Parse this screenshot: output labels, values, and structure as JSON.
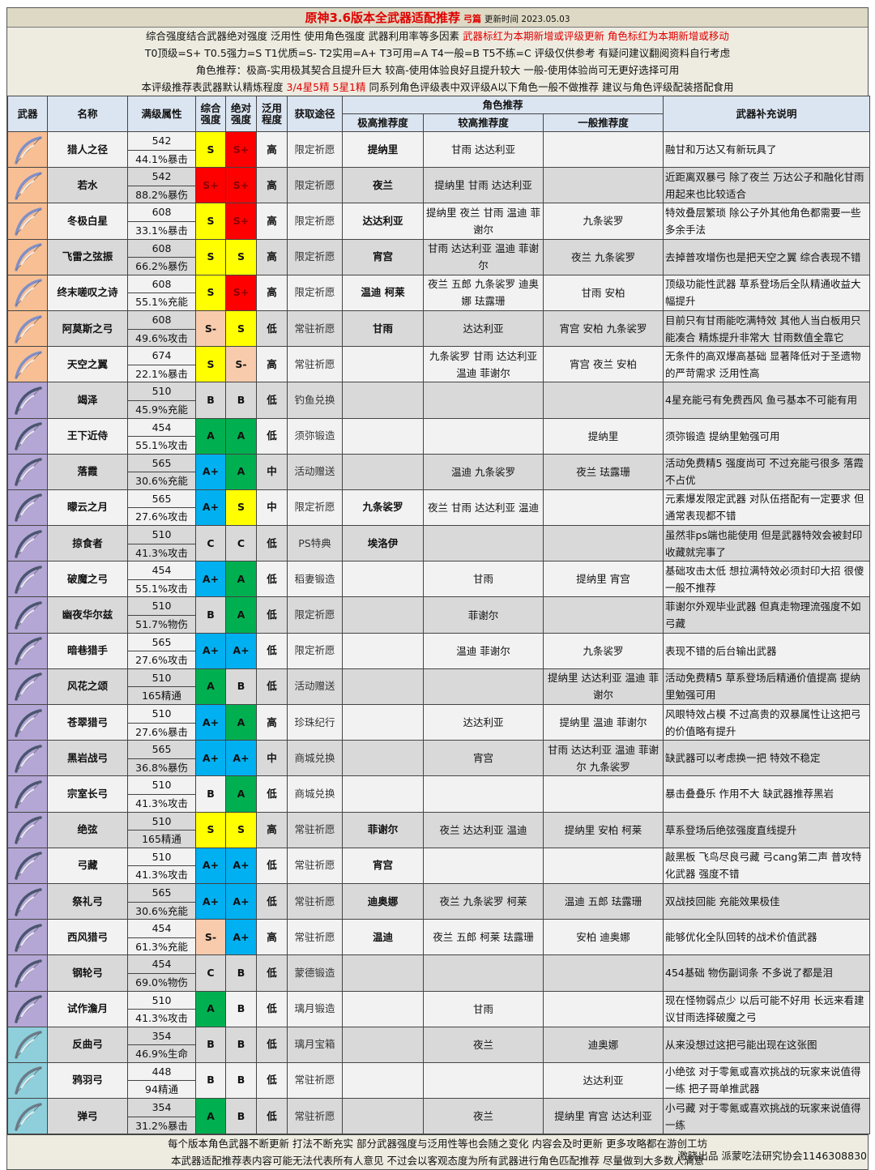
{
  "title": {
    "main": "原神3.6版本全武器适配推荐",
    "sub": "弓篇",
    "updated": "更新时间 2023.05.03"
  },
  "info": {
    "line1": "综合强度结合武器绝对强度 泛用性 使用角色强度 武器利用率等多因素",
    "line1_red": "武器标红为本期新增或评级更新 角色标红为本期新增或移动",
    "line2": "T0顶级=S+ T0.5强力=S T1优质=S- T2实用=A+ T3可用=A T4一般=B T5不练=C  评级仅供参考 有疑问建议翻阅资料自行考虑",
    "line3": "角色推荐：极高-实用极其契合且提升巨大 较高-使用体验良好且提升较大 一般-使用体验尚可无更好选择可用",
    "line4a": "本评级推荐表武器默认精炼程度",
    "line4_red": "3/4星5精 5星1精",
    "line4b": "同系列角色评级表中双评级A以下角色一般不做推荐 建议与角色评级配装搭配食用"
  },
  "headers": {
    "weapon": "武器",
    "name": "名称",
    "stats": "满级属性",
    "overall": "综合强度",
    "absolute": "绝对强度",
    "versatility": "泛用程度",
    "source": "获取途径",
    "rec": "角色推荐",
    "rec_high": "极高推荐度",
    "rec_mid": "较高推荐度",
    "rec_low": "一般推荐度",
    "notes": "武器补充说明"
  },
  "colors": {
    "S+": "#ff0000",
    "S": "#ffff00",
    "S-": "#f8cbad",
    "A+": "#00b0f0",
    "A": "#00b050",
    "rarity5": "#f8bf94",
    "rarity4": "#b4a7d6",
    "rarity3": "#8ecfdb"
  },
  "rows": [
    {
      "rarity": 5,
      "name": "猎人之径",
      "atk": "542",
      "sub": "44.1%暴击",
      "overall": "S",
      "absolute": "S+",
      "vers": "高",
      "source": "限定祈愿",
      "high": "提纳里",
      "mid": "甘雨 达达利亚",
      "low": "",
      "note": "融甘和万达又有新玩具了"
    },
    {
      "rarity": 5,
      "name": "若水",
      "atk": "542",
      "sub": "88.2%暴伤",
      "overall": "S+",
      "absolute": "S+",
      "vers": "高",
      "source": "限定祈愿",
      "high": "夜兰",
      "mid": "提纳里 甘雨 达达利亚",
      "low": "",
      "note": "近距离双暴弓 除了夜兰 万达公子和融化甘雨用起来也比较适合"
    },
    {
      "rarity": 5,
      "name": "冬极白星",
      "atk": "608",
      "sub": "33.1%暴击",
      "overall": "S",
      "absolute": "S+",
      "vers": "高",
      "source": "限定祈愿",
      "high": "达达利亚",
      "mid": "提纳里 夜兰 甘雨 温迪 菲谢尔",
      "low": "九条裟罗",
      "note": "特效叠层繁琐 除公子外其他角色都需要一些多余手法"
    },
    {
      "rarity": 5,
      "name": "飞雷之弦振",
      "atk": "608",
      "sub": "66.2%暴伤",
      "overall": "S",
      "absolute": "S",
      "vers": "高",
      "source": "限定祈愿",
      "high": "宵宫",
      "mid": "甘雨 达达利亚 温迪 菲谢尔",
      "low": "夜兰 九条裟罗",
      "note": "去掉普攻增伤也是把天空之翼 综合表现不错"
    },
    {
      "rarity": 5,
      "name": "终末嗟叹之诗",
      "atk": "608",
      "sub": "55.1%充能",
      "overall": "S",
      "absolute": "S+",
      "vers": "高",
      "source": "限定祈愿",
      "high": "温迪 柯莱",
      "mid": "夜兰 五郎 九条裟罗 迪奥娜 珐露珊",
      "low": "甘雨 安柏",
      "note": "顶级功能性武器 草系登场后全队精通收益大幅提升"
    },
    {
      "rarity": 5,
      "name": "阿莫斯之弓",
      "atk": "608",
      "sub": "49.6%攻击",
      "overall": "S-",
      "absolute": "S",
      "vers": "低",
      "source": "常驻祈愿",
      "high": "甘雨",
      "mid": "达达利亚",
      "low": "宵宫 安柏 九条裟罗",
      "note": "目前只有甘雨能吃满特效 其他人当白板用只能凑合 精炼提升非常大 甘雨数值全靠它"
    },
    {
      "rarity": 5,
      "name": "天空之翼",
      "atk": "674",
      "sub": "22.1%暴击",
      "overall": "S",
      "absolute": "S-",
      "vers": "高",
      "source": "常驻祈愿",
      "high": "",
      "mid": "九条裟罗 甘雨 达达利亚 温迪 菲谢尔",
      "low": "宵宫 夜兰 安柏",
      "note": "无条件的高双爆高基础 显著降低对于圣遗物的严苛需求 泛用性高"
    },
    {
      "rarity": 4,
      "name": "竭泽",
      "atk": "510",
      "sub": "45.9%充能",
      "overall": "B",
      "absolute": "B",
      "vers": "低",
      "source": "钓鱼兑换",
      "high": "",
      "mid": "",
      "low": "",
      "note": "4星充能弓有免费西风 鱼弓基本不可能有用"
    },
    {
      "rarity": 4,
      "name": "王下近侍",
      "atk": "454",
      "sub": "55.1%攻击",
      "overall": "A",
      "absolute": "A",
      "vers": "低",
      "source": "须弥锻造",
      "high": "",
      "mid": "",
      "low": "提纳里",
      "note": "须弥锻造 提纳里勉强可用"
    },
    {
      "rarity": 4,
      "name": "落霞",
      "atk": "565",
      "sub": "30.6%充能",
      "overall": "A+",
      "absolute": "A",
      "vers": "中",
      "source": "活动赠送",
      "high": "",
      "mid": "温迪 九条裟罗",
      "low": "夜兰 珐露珊",
      "note": "活动免费精5 强度尚可 不过充能弓很多 落霞不占优"
    },
    {
      "rarity": 4,
      "name": "曚云之月",
      "atk": "565",
      "sub": "27.6%攻击",
      "overall": "A+",
      "absolute": "S",
      "vers": "中",
      "source": "限定祈愿",
      "high": "九条裟罗",
      "mid": "夜兰 甘雨 达达利亚 温迪",
      "low": "",
      "note": "元素爆发限定武器 对队伍搭配有一定要求 但通常表现都不错"
    },
    {
      "rarity": 4,
      "name": "掠食者",
      "atk": "510",
      "sub": "41.3%攻击",
      "overall": "C",
      "absolute": "C",
      "vers": "低",
      "source": "PS特典",
      "high": "埃洛伊",
      "mid": "",
      "low": "",
      "note": "虽然非ps端也能使用 但是武器特效会被封印 收藏就完事了"
    },
    {
      "rarity": 4,
      "name": "破魔之弓",
      "atk": "454",
      "sub": "55.1%攻击",
      "overall": "A+",
      "absolute": "A",
      "vers": "低",
      "source": "稻妻锻造",
      "high": "",
      "mid": "甘雨",
      "low": "提纳里 宵宫",
      "note": "基础攻击太低 想拉满特效必须封印大招 很傻 一般不推荐"
    },
    {
      "rarity": 4,
      "name": "幽夜华尔兹",
      "atk": "510",
      "sub": "51.7%物伤",
      "overall": "B",
      "absolute": "A",
      "vers": "低",
      "source": "限定祈愿",
      "high": "",
      "mid": "菲谢尔",
      "low": "",
      "note": "菲谢尔外观毕业武器 但真走物理流强度不如弓藏"
    },
    {
      "rarity": 4,
      "name": "暗巷猎手",
      "atk": "565",
      "sub": "27.6%攻击",
      "overall": "A+",
      "absolute": "A+",
      "vers": "低",
      "source": "限定祈愿",
      "high": "",
      "mid": "温迪 菲谢尔",
      "low": "九条裟罗",
      "note": "表现不错的后台输出武器"
    },
    {
      "rarity": 4,
      "name": "风花之颂",
      "atk": "510",
      "sub": "165精通",
      "overall": "A",
      "absolute": "B",
      "vers": "低",
      "source": "活动赠送",
      "high": "",
      "mid": "",
      "low": "提纳里 达达利亚 温迪 菲谢尔",
      "note": "活动免费精5 草系登场后精通价值提高 提纳里勉强可用"
    },
    {
      "rarity": 4,
      "name": "苍翠猎弓",
      "atk": "510",
      "sub": "27.6%暴击",
      "overall": "A+",
      "absolute": "A",
      "vers": "高",
      "source": "珍珠纪行",
      "high": "",
      "mid": "达达利亚",
      "low": "提纳里 温迪 菲谢尔",
      "note": "风眼特效占模 不过高贵的双暴属性让这把弓的价值略有提升"
    },
    {
      "rarity": 4,
      "name": "黑岩战弓",
      "atk": "565",
      "sub": "36.8%暴伤",
      "overall": "A+",
      "absolute": "A+",
      "vers": "中",
      "source": "商城兑换",
      "high": "",
      "mid": "宵宫",
      "low": "甘雨 达达利亚 温迪 菲谢尔 九条裟罗",
      "note": "缺武器可以考虑换一把 特效不稳定"
    },
    {
      "rarity": 4,
      "name": "宗室长弓",
      "atk": "510",
      "sub": "41.3%攻击",
      "overall": "B",
      "absolute": "A",
      "vers": "低",
      "source": "商城兑换",
      "high": "",
      "mid": "",
      "low": "",
      "note": "暴击叠叠乐 作用不大 缺武器推荐黑岩"
    },
    {
      "rarity": 4,
      "name": "绝弦",
      "atk": "510",
      "sub": "165精通",
      "overall": "S",
      "absolute": "S",
      "vers": "高",
      "source": "常驻祈愿",
      "high": "菲谢尔",
      "mid": "夜兰 达达利亚 温迪",
      "low": "提纳里 安柏 柯莱",
      "note": "草系登场后绝弦强度直线提升"
    },
    {
      "rarity": 4,
      "name": "弓藏",
      "atk": "510",
      "sub": "41.3%攻击",
      "overall": "A+",
      "absolute": "A+",
      "vers": "低",
      "source": "常驻祈愿",
      "high": "宵宫",
      "mid": "",
      "low": "",
      "note": "敲黑板 飞鸟尽良弓藏 弓cang第二声 普攻特化武器 强度不错"
    },
    {
      "rarity": 4,
      "name": "祭礼弓",
      "atk": "565",
      "sub": "30.6%充能",
      "overall": "A+",
      "absolute": "A+",
      "vers": "低",
      "source": "常驻祈愿",
      "high": "迪奥娜",
      "mid": "夜兰 九条裟罗 柯莱",
      "low": "温迪 五郎 珐露珊",
      "note": "双战技回能 充能效果极佳"
    },
    {
      "rarity": 4,
      "name": "西风猎弓",
      "atk": "454",
      "sub": "61.3%充能",
      "overall": "S-",
      "absolute": "A+",
      "vers": "高",
      "source": "常驻祈愿",
      "high": "温迪",
      "mid": "夜兰 五郎 柯莱 珐露珊",
      "low": "安柏 迪奥娜",
      "note": "能够优化全队回转的战术价值武器"
    },
    {
      "rarity": 4,
      "name": "钢轮弓",
      "atk": "454",
      "sub": "69.0%物伤",
      "overall": "C",
      "absolute": "B",
      "vers": "低",
      "source": "蒙德锻造",
      "high": "",
      "mid": "",
      "low": "",
      "note": "454基础 物伤副词条 不多说了都是泪"
    },
    {
      "rarity": 4,
      "name": "试作澹月",
      "atk": "510",
      "sub": "41.3%攻击",
      "overall": "A",
      "absolute": "B",
      "vers": "低",
      "source": "璃月锻造",
      "high": "",
      "mid": "甘雨",
      "low": "",
      "note": "现在怪物弱点少 以后可能不好用 长远来看建议甘雨选择破魔之弓"
    },
    {
      "rarity": 3,
      "name": "反曲弓",
      "atk": "354",
      "sub": "46.9%生命",
      "overall": "B",
      "absolute": "B",
      "vers": "低",
      "source": "璃月宝箱",
      "high": "",
      "mid": "夜兰",
      "low": "迪奥娜",
      "note": "从来没想过这把弓能出现在这张图"
    },
    {
      "rarity": 3,
      "name": "鸦羽弓",
      "atk": "448",
      "sub": "94精通",
      "overall": "B",
      "absolute": "B",
      "vers": "低",
      "source": "常驻祈愿",
      "high": "",
      "mid": "",
      "low": "达达利亚",
      "note": "小绝弦 对于零氪或喜欢挑战的玩家来说值得一练 把子哥单推武器"
    },
    {
      "rarity": 3,
      "name": "弹弓",
      "atk": "354",
      "sub": "31.2%暴击",
      "overall": "A",
      "absolute": "B",
      "vers": "低",
      "source": "常驻祈愿",
      "high": "",
      "mid": "夜兰",
      "low": "提纳里 宵宫 达达利亚",
      "note": "小弓藏 对于零氪或喜欢挑战的玩家来说值得一练"
    }
  ],
  "footer": {
    "line1": "每个版本角色武器不断更新 打法不断充实 部分武器强度与泛用性等也会随之变化 内容会及时更新 更多攻略都在游创工坊",
    "line2": "本武器适配推荐表内容可能无法代表所有人意见 不过会以客观态度为所有武器进行角色匹配推荐 尽量做到大多数人满意"
  },
  "credit": "激晓出品 派蒙吃法研究协会1146308830"
}
